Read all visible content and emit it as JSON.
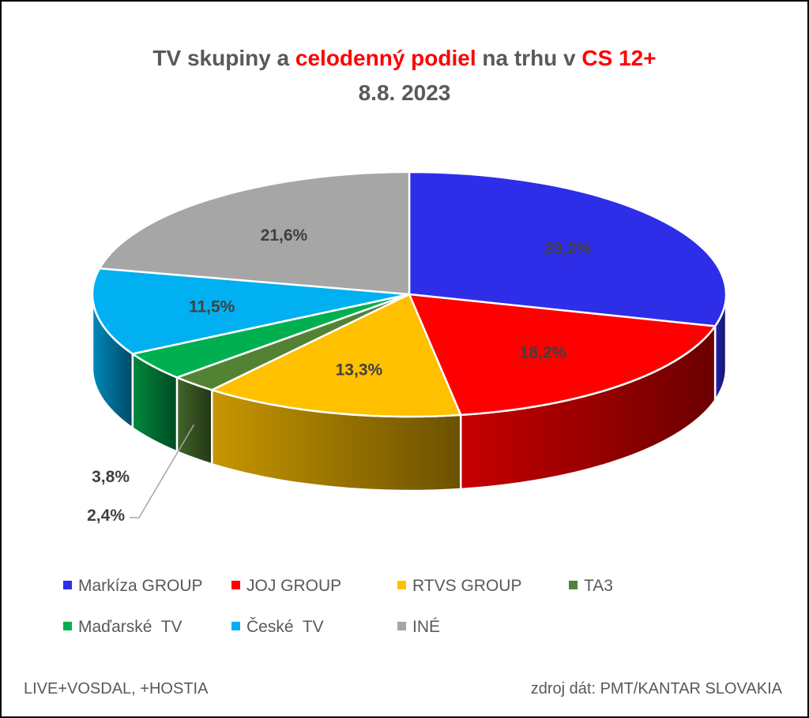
{
  "chart_data": {
    "type": "pie",
    "title_parts": [
      {
        "text": "TV skupiny a ",
        "highlight": false
      },
      {
        "text": "celodenný podiel",
        "highlight": true
      },
      {
        "text": " na trhu v ",
        "highlight": false
      },
      {
        "text": "CS 12+",
        "highlight": true
      }
    ],
    "subtitle": "8.8. 2023",
    "highlight_color": "#ff0000",
    "slices": [
      {
        "name": "Markíza GROUP",
        "value": 29.2,
        "label": "29,2%",
        "color": "#2e2ee8"
      },
      {
        "name": "JOJ GROUP",
        "value": 18.2,
        "label": "18,2%",
        "color": "#ff0000"
      },
      {
        "name": "RTVS GROUP",
        "value": 13.3,
        "label": "13,3%",
        "color": "#ffc000"
      },
      {
        "name": "TA3",
        "value": 2.4,
        "label": "2,4%",
        "color": "#548235"
      },
      {
        "name": "Maďarské  TV",
        "value": 3.8,
        "label": "3,8%",
        "color": "#00b050"
      },
      {
        "name": "České  TV",
        "value": 11.5,
        "label": "11,5%",
        "color": "#00b0f0"
      },
      {
        "name": "INÉ",
        "value": 21.6,
        "label": "21,6%",
        "color": "#a6a6a6"
      }
    ],
    "legend_placement": "bottom"
  },
  "footer": {
    "left": "LIVE+VOSDAL, +HOSTIA",
    "right": "zdroj dát: PMT/KANTAR SLOVAKIA"
  }
}
